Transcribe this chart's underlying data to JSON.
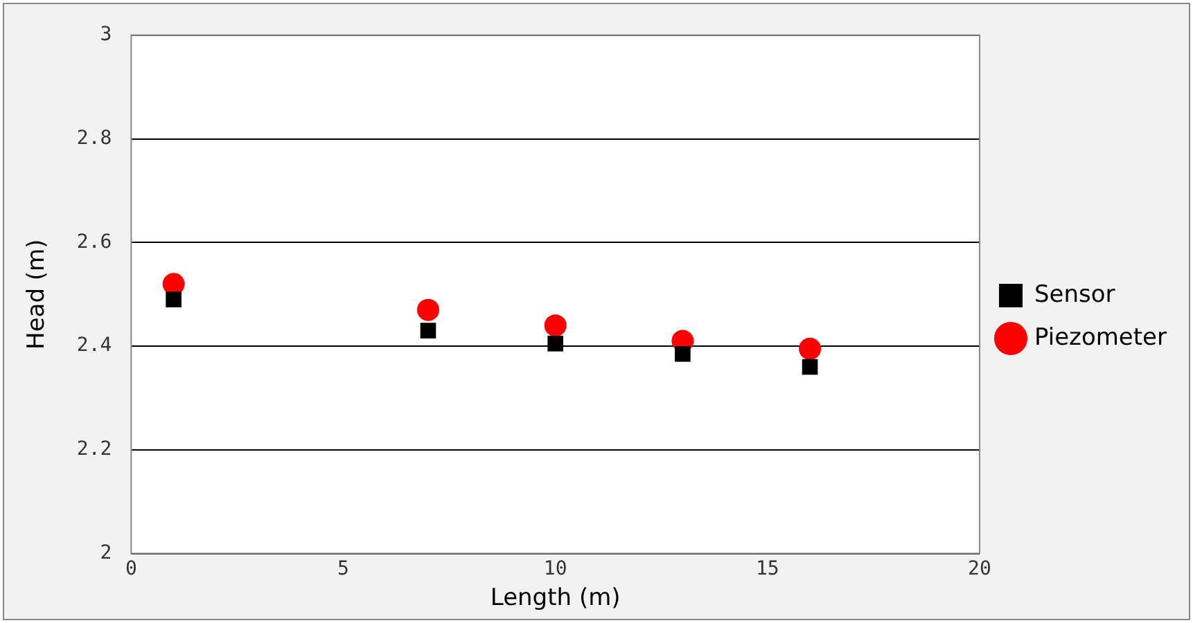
{
  "chart_data": {
    "type": "scatter",
    "xlabel": "Length (m)",
    "ylabel": "Head (m)",
    "xlim": [
      0,
      20
    ],
    "xticks": [
      0,
      5,
      10,
      15,
      20
    ],
    "ylim": [
      2,
      3
    ],
    "yticks": [
      2,
      2.2,
      2.4,
      2.6,
      2.8,
      3
    ],
    "grid": "y",
    "legend": "right",
    "series": [
      {
        "name": "Sensor",
        "color": "#000000",
        "marker": "square",
        "x": [
          1,
          7,
          10,
          13,
          16
        ],
        "values": [
          2.49,
          2.43,
          2.405,
          2.385,
          2.36
        ]
      },
      {
        "name": "Piezometer",
        "color": "#ff0000",
        "marker": "circle",
        "x": [
          1,
          7,
          10,
          13,
          16
        ],
        "values": [
          2.52,
          2.47,
          2.44,
          2.41,
          2.395
        ]
      }
    ]
  }
}
